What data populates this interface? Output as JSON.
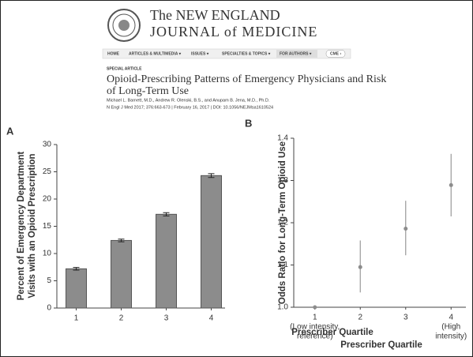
{
  "header": {
    "journal_title": [
      "The NEW ENGLAND",
      "JOURNAL of MEDICINE"
    ],
    "nav": [
      "HOME",
      "ARTICLES & MULTIMEDIA ▾",
      "ISSUES ▾",
      "SPECIALTIES & TOPICS ▾",
      "FOR AUTHORS ▾",
      "CME ›"
    ],
    "section": "SPECIAL ARTICLE",
    "article_title": [
      "Opioid-Prescribing Patterns of Emergency Physicians and Risk",
      "of Long-Term Use"
    ],
    "authors": "Michael L. Barnett, M.D., Andrew R. Olenski, B.S., and Anupam B. Jena, M.D., Ph.D.",
    "citation": "N Engl J Med 2017; 376:663-673 | February 16, 2017 | DOI: 10.1056/NEJMsa1610524"
  },
  "chart_data": [
    {
      "type": "bar",
      "panel": "A",
      "ylabel": [
        "Percent of Emergency Department",
        "Visits with an Opioid Prescription"
      ],
      "xlabel": "Prescriber Quartile",
      "categories": [
        "1",
        "2",
        "3",
        "4"
      ],
      "values": [
        7.2,
        12.4,
        17.2,
        24.3
      ],
      "errors": [
        0.25,
        0.25,
        0.3,
        0.35
      ],
      "color": "#8c8c8c",
      "ylim": [
        0,
        30
      ],
      "yticks": [
        0,
        5,
        10,
        15,
        20,
        25,
        30
      ]
    },
    {
      "type": "point",
      "panel": "B",
      "ylabel": [
        "Odds Ratio for Long-Term Opioid Use"
      ],
      "xlabel": "Prescriber Quartile",
      "categories": [
        "1",
        "2",
        "3",
        "4"
      ],
      "category_notes": [
        [
          "(Low intensity,",
          "reference)"
        ],
        null,
        null,
        [
          "(High",
          "intensity)"
        ]
      ],
      "values": [
        1.0,
        1.095,
        1.186,
        1.289
      ],
      "lower": [
        null,
        1.035,
        1.123,
        1.215
      ],
      "upper": [
        null,
        1.158,
        1.252,
        1.363
      ],
      "color": "#8c8c8c",
      "ylim": [
        1.0,
        1.4
      ],
      "yticks": [
        {
          "value": 1.0,
          "label": "1.0"
        },
        1.1,
        1.2,
        1.3,
        1.4
      ]
    }
  ]
}
